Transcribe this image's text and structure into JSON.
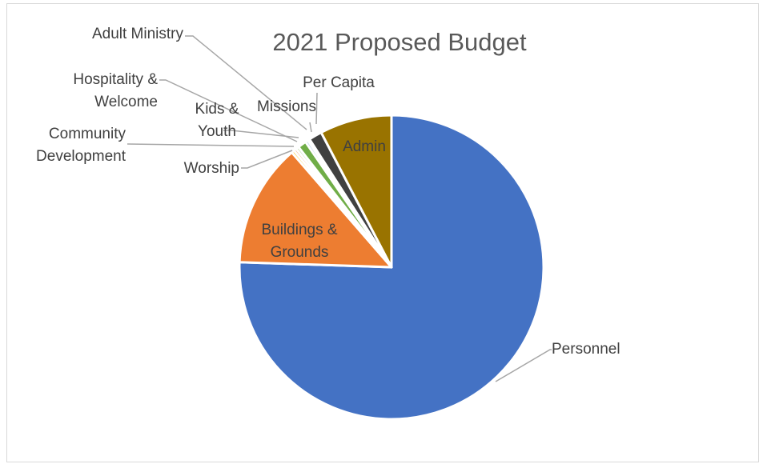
{
  "chart_data": {
    "type": "pie",
    "title": "2021 Proposed Budget",
    "categories": [
      "Personnel",
      "Buildings & Grounds",
      "Worship",
      "Community Development",
      "Hospitality & Welcome",
      "Kids & Youth",
      "Adult Ministry",
      "Missions",
      "Per Capita",
      "Admin"
    ],
    "values": [
      75.0,
      13.0,
      0.3,
      0.3,
      0.3,
      0.9,
      0.3,
      0.2,
      1.4,
      7.6
    ],
    "colors": [
      "#4472C4",
      "#ED7D31",
      "#FFC000",
      "#F4B183",
      "#A9D18E",
      "#70AD47",
      "#9DC3E6",
      "#A5A5A5",
      "#404040",
      "#997300"
    ],
    "start": "12 o'clock",
    "direction": "clockwise",
    "legend": "none",
    "data_labels": "category names, with leader lines for small slices"
  }
}
